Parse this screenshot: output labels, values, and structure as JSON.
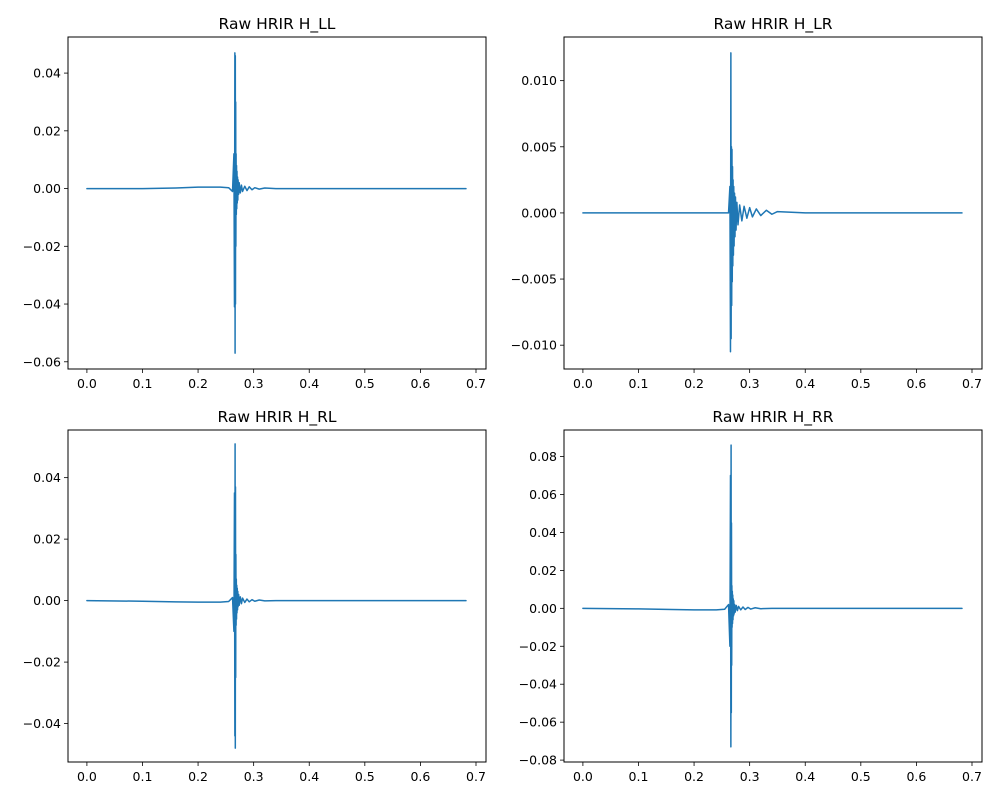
{
  "figure": {
    "background": "#ffffff",
    "line_color": "#1f77b4"
  },
  "chart_data": [
    {
      "type": "line",
      "title": "Raw HRIR H_LL",
      "xlim": [
        -0.034,
        0.718
      ],
      "ylim": [
        -0.0625,
        0.0525
      ],
      "xticks": [
        0.0,
        0.1,
        0.2,
        0.3,
        0.4,
        0.5,
        0.6,
        0.7
      ],
      "xtick_labels": [
        "0.0",
        "0.1",
        "0.2",
        "0.3",
        "0.4",
        "0.5",
        "0.6",
        "0.7"
      ],
      "yticks": [
        -0.06,
        -0.04,
        -0.02,
        0.0,
        0.02,
        0.04
      ],
      "ytick_labels": [
        "−0.06",
        "−0.04",
        "−0.02",
        "0.00",
        "0.02",
        "0.04"
      ],
      "series": [
        {
          "color": "#1f77b4",
          "x": [
            0.0,
            0.1,
            0.16,
            0.2,
            0.24,
            0.255,
            0.262,
            0.2645,
            0.2655,
            0.2662,
            0.2666,
            0.267,
            0.2673,
            0.2677,
            0.268,
            0.2684,
            0.2688,
            0.2692,
            0.2696,
            0.27,
            0.2705,
            0.271,
            0.2715,
            0.272,
            0.273,
            0.274,
            0.276,
            0.278,
            0.28,
            0.284,
            0.288,
            0.292,
            0.297,
            0.302,
            0.31,
            0.32,
            0.34,
            0.4,
            0.5,
            0.6,
            0.682
          ],
          "y": [
            0.0,
            0.0,
            0.0002,
            0.0005,
            0.0005,
            0.0003,
            -0.001,
            0.012,
            -0.041,
            0.047,
            -0.057,
            0.046,
            -0.04,
            0.03,
            -0.02,
            0.012,
            -0.009,
            0.008,
            -0.007,
            0.006,
            -0.005,
            0.004,
            -0.004,
            0.003,
            -0.002,
            0.002,
            -0.0015,
            0.0012,
            -0.001,
            0.0008,
            -0.0007,
            0.0006,
            -0.0004,
            0.0003,
            -0.0002,
            0.0002,
            0.0,
            0.0,
            0.0,
            0.0,
            0.0
          ]
        }
      ]
    },
    {
      "type": "line",
      "title": "Raw HRIR H_LR",
      "xlim": [
        -0.034,
        0.718
      ],
      "ylim": [
        -0.0118,
        0.0133
      ],
      "xticks": [
        0.0,
        0.1,
        0.2,
        0.3,
        0.4,
        0.5,
        0.6,
        0.7
      ],
      "xtick_labels": [
        "0.0",
        "0.1",
        "0.2",
        "0.3",
        "0.4",
        "0.5",
        "0.6",
        "0.7"
      ],
      "yticks": [
        -0.01,
        -0.005,
        0.0,
        0.005,
        0.01
      ],
      "ytick_labels": [
        "−0.010",
        "−0.005",
        "0.000",
        "0.005",
        "0.010"
      ],
      "series": [
        {
          "color": "#1f77b4",
          "x": [
            0.0,
            0.1,
            0.2,
            0.25,
            0.262,
            0.2645,
            0.2655,
            0.2662,
            0.2667,
            0.2672,
            0.2677,
            0.2682,
            0.2687,
            0.2692,
            0.2697,
            0.2702,
            0.2708,
            0.2714,
            0.272,
            0.2728,
            0.2736,
            0.2745,
            0.2755,
            0.277,
            0.279,
            0.282,
            0.286,
            0.29,
            0.295,
            0.3,
            0.305,
            0.312,
            0.32,
            0.33,
            0.34,
            0.35,
            0.4,
            0.5,
            0.6,
            0.682
          ],
          "y": [
            0.0,
            0.0,
            0.0,
            0.0,
            0.0,
            0.002,
            -0.0105,
            0.0121,
            -0.0095,
            0.005,
            -0.007,
            0.0048,
            -0.0052,
            0.0035,
            -0.004,
            0.0025,
            -0.0032,
            0.002,
            -0.0025,
            0.0015,
            -0.0018,
            0.0012,
            -0.0013,
            0.0008,
            -0.0009,
            0.0006,
            -0.0006,
            0.0005,
            -0.0004,
            0.0004,
            -0.0003,
            0.0003,
            -0.0002,
            0.0002,
            -0.0001,
            0.0001,
            0.0,
            0.0,
            0.0,
            0.0
          ]
        }
      ]
    },
    {
      "type": "line",
      "title": "Raw HRIR H_RL",
      "xlim": [
        -0.034,
        0.718
      ],
      "ylim": [
        -0.0525,
        0.0555
      ],
      "xticks": [
        0.0,
        0.1,
        0.2,
        0.3,
        0.4,
        0.5,
        0.6,
        0.7
      ],
      "xtick_labels": [
        "0.0",
        "0.1",
        "0.2",
        "0.3",
        "0.4",
        "0.5",
        "0.6",
        "0.7"
      ],
      "yticks": [
        -0.04,
        -0.02,
        0.0,
        0.02,
        0.04
      ],
      "ytick_labels": [
        "−0.04",
        "−0.02",
        "0.00",
        "0.02",
        "0.04"
      ],
      "series": [
        {
          "color": "#1f77b4",
          "x": [
            0.0,
            0.1,
            0.16,
            0.2,
            0.24,
            0.255,
            0.262,
            0.2645,
            0.2655,
            0.2662,
            0.2666,
            0.267,
            0.2673,
            0.2677,
            0.268,
            0.2684,
            0.2688,
            0.2692,
            0.2696,
            0.27,
            0.2705,
            0.271,
            0.2715,
            0.272,
            0.273,
            0.274,
            0.276,
            0.278,
            0.28,
            0.284,
            0.288,
            0.292,
            0.297,
            0.302,
            0.31,
            0.32,
            0.34,
            0.4,
            0.5,
            0.6,
            0.682
          ],
          "y": [
            0.0,
            -0.0002,
            -0.0004,
            -0.0005,
            -0.0005,
            -0.0003,
            0.001,
            -0.01,
            0.035,
            -0.044,
            0.051,
            -0.048,
            0.037,
            -0.025,
            0.015,
            -0.008,
            0.007,
            -0.006,
            0.005,
            -0.004,
            0.004,
            -0.003,
            0.003,
            -0.002,
            0.002,
            -0.0015,
            0.0012,
            -0.001,
            0.0008,
            -0.0006,
            0.0005,
            -0.0004,
            0.0003,
            -0.0002,
            0.0002,
            -0.0001,
            0.0,
            0.0,
            0.0,
            0.0,
            0.0
          ]
        }
      ]
    },
    {
      "type": "line",
      "title": "Raw HRIR H_RR",
      "xlim": [
        -0.034,
        0.718
      ],
      "ylim": [
        -0.081,
        0.094
      ],
      "xticks": [
        0.0,
        0.1,
        0.2,
        0.3,
        0.4,
        0.5,
        0.6,
        0.7
      ],
      "xtick_labels": [
        "0.0",
        "0.1",
        "0.2",
        "0.3",
        "0.4",
        "0.5",
        "0.6",
        "0.7"
      ],
      "yticks": [
        -0.08,
        -0.06,
        -0.04,
        -0.02,
        0.0,
        0.02,
        0.04,
        0.06,
        0.08
      ],
      "ytick_labels": [
        "−0.08",
        "−0.06",
        "−0.04",
        "−0.02",
        "0.00",
        "0.02",
        "0.04",
        "0.06",
        "0.08"
      ],
      "series": [
        {
          "color": "#1f77b4",
          "x": [
            0.0,
            0.1,
            0.16,
            0.2,
            0.24,
            0.255,
            0.262,
            0.2645,
            0.2655,
            0.2662,
            0.2666,
            0.267,
            0.2673,
            0.2677,
            0.268,
            0.2684,
            0.2688,
            0.2692,
            0.2696,
            0.27,
            0.2705,
            0.271,
            0.2715,
            0.272,
            0.273,
            0.274,
            0.276,
            0.278,
            0.28,
            0.284,
            0.288,
            0.292,
            0.297,
            0.302,
            0.31,
            0.32,
            0.34,
            0.4,
            0.5,
            0.6,
            0.682
          ],
          "y": [
            0.0,
            -0.0003,
            -0.0006,
            -0.0008,
            -0.0008,
            -0.0005,
            0.002,
            -0.02,
            0.07,
            -0.073,
            0.086,
            -0.055,
            0.045,
            -0.03,
            0.012,
            -0.01,
            0.009,
            -0.008,
            0.007,
            -0.006,
            0.005,
            -0.004,
            0.004,
            -0.003,
            0.002,
            -0.002,
            0.0015,
            -0.0012,
            0.001,
            -0.0008,
            0.0007,
            -0.0006,
            0.0005,
            -0.0004,
            0.0003,
            -0.0002,
            0.0,
            0.0,
            0.0,
            0.0,
            0.0
          ]
        }
      ]
    }
  ]
}
